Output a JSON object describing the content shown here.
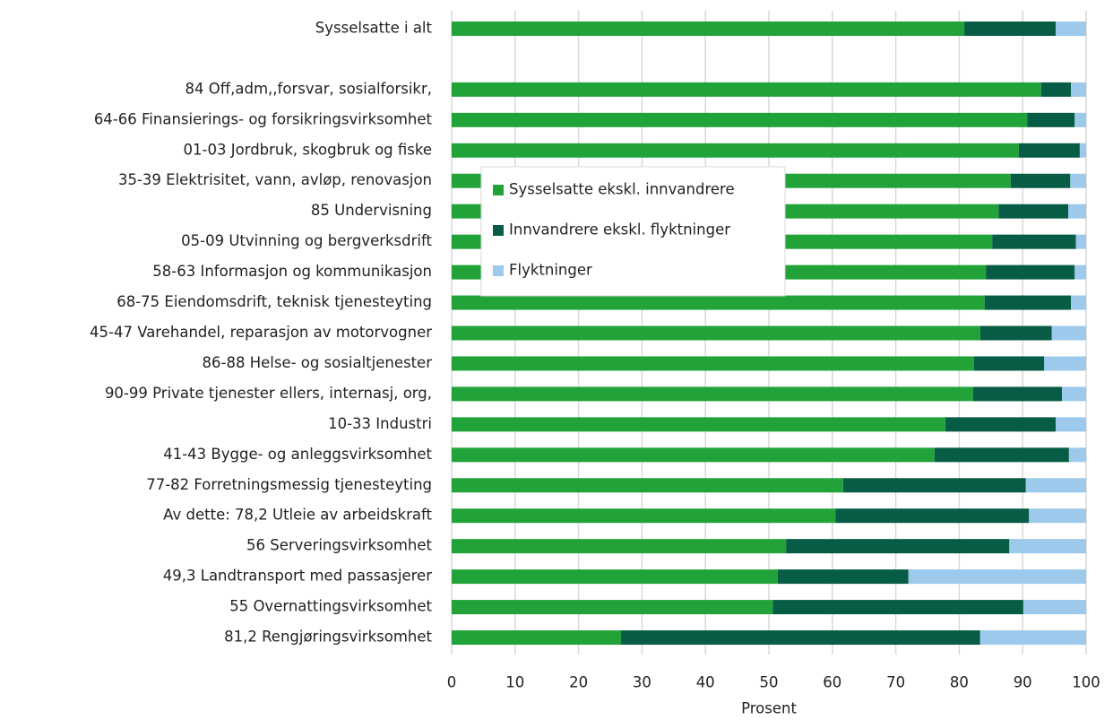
{
  "chart_data": {
    "type": "stacked-bar-horizontal",
    "categories": [
      "Sysselsatte i alt",
      null,
      "84 Off,adm,,forsvar, sosialforsikr,",
      "64-66 Finansierings- og forsikringsvirksomhet",
      "01-03 Jordbruk, skogbruk og fiske",
      "35-39 Elektrisitet, vann, avløp, renovasjon",
      "85 Undervisning",
      "05-09 Utvinning og bergverksdrift",
      "58-63 Informasjon og kommunikasjon",
      "68-75 Eiendomsdrift, teknisk tjenesteyting",
      "45-47 Varehandel, reparasjon av motorvogner",
      "86-88 Helse- og sosialtjenester",
      "90-99 Private tjenester ellers, internasj, org,",
      "10-33 Industri",
      "41-43 Bygge- og anleggsvirksomhet",
      "77-82 Forretningsmessig tjenesteyting",
      "Av dette: 78,2 Utleie av arbeidskraft",
      "56 Serveringsvirksomhet",
      "49,3 Landtransport med passasjerer",
      "55 Overnattingsvirksomhet",
      "81,2 Rengjøringsvirksomhet"
    ],
    "series": [
      {
        "name": "Sysselsatte ekskl. innvandrere",
        "color": "#22a33a",
        "values": [
          80.8,
          null,
          92.9,
          90.7,
          89.4,
          88.1,
          86.2,
          85.2,
          84.2,
          84.0,
          83.3,
          82.3,
          82.2,
          77.8,
          76.1,
          61.7,
          60.5,
          52.7,
          51.4,
          50.6,
          26.7
        ]
      },
      {
        "name": "Innvandrere ekskl. flyktninger",
        "color": "#075c45",
        "values": [
          14.4,
          null,
          4.7,
          7.5,
          9.6,
          9.4,
          11.0,
          13.2,
          14.0,
          13.6,
          11.3,
          11.1,
          14.0,
          17.4,
          21.2,
          28.8,
          30.5,
          35.2,
          20.6,
          39.5,
          56.6
        ]
      },
      {
        "name": "Flyktninger",
        "color": "#9dcaec",
        "values": [
          4.8,
          null,
          2.4,
          1.8,
          1.0,
          2.5,
          2.8,
          1.6,
          1.8,
          2.4,
          5.4,
          6.6,
          3.8,
          4.8,
          2.7,
          9.5,
          9.0,
          12.1,
          28.0,
          9.9,
          16.7
        ]
      }
    ],
    "xlabel": "Prosent",
    "xlim": [
      0,
      100
    ],
    "xticks": [
      0,
      10,
      20,
      30,
      40,
      50,
      60,
      70,
      80,
      90,
      100
    ],
    "grid": true,
    "legend_position": "upper left"
  }
}
